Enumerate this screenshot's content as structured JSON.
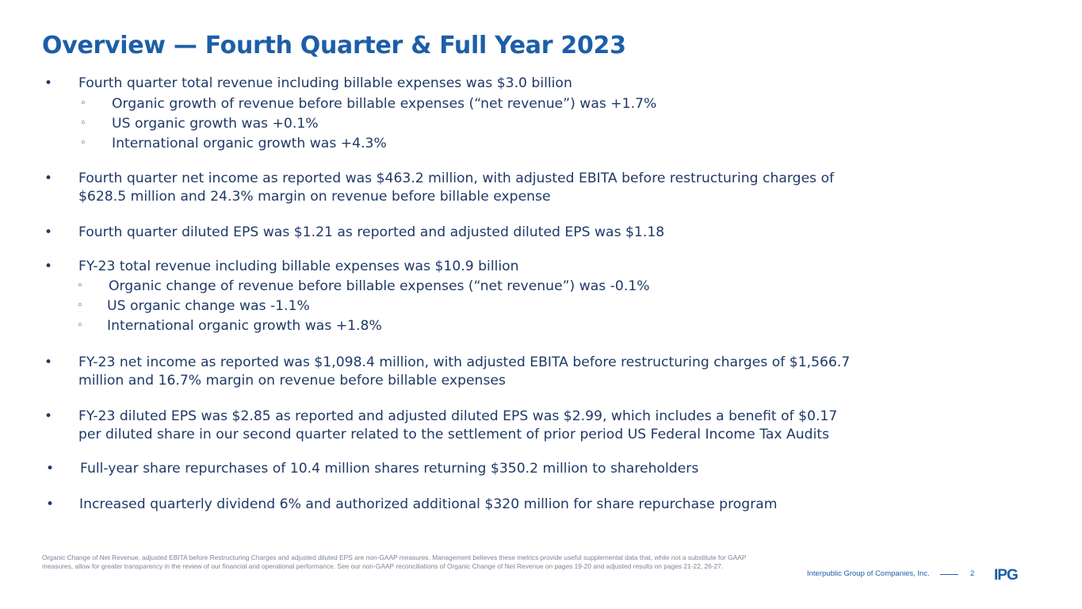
{
  "title": "Overview — Fourth Quarter & Full Year 2023",
  "bullets": [
    "Fourth quarter total revenue including billable expenses was $3.0 billion",
    "Organic growth of revenue before billable expenses (“net revenue”) was +1.7%",
    "US organic growth was +0.1%",
    "International organic growth was +4.3%",
    "Fourth quarter net income as reported was $463.2 million, with adjusted EBITA before restructuring charges of",
    "$628.5 million and 24.3% margin on revenue before billable expense",
    "Fourth quarter diluted EPS was $1.21 as reported and adjusted diluted EPS was $1.18",
    "FY-23 total revenue including billable expenses was $10.9 billion",
    "Organic change of revenue before billable expenses (“net revenue”) was -0.1%",
    "US organic change was -1.1%",
    "International organic growth was +1.8%",
    "FY-23 net income as reported was $1,098.4 million, with adjusted EBITA before restructuring charges of $1,566.7",
    "million and 16.7% margin on revenue before billable expenses",
    "FY-23 diluted EPS was $2.85 as reported and adjusted diluted EPS was $2.99, which includes a benefit of $0.17",
    "per diluted share in our second quarter related to the settlement of prior period US Federal Income Tax Audits",
    "Full-year share repurchases of 10.4 million shares returning $350.2 million to shareholders",
    "Increased quarterly dividend 6% and authorized additional $320 million for share repurchase program"
  ],
  "footnote": "Organic Change of Net Revenue, adjusted EBITA before Restructuring Charges and adjusted diluted EPS are non-GAAP measures. Management believes these metrics provide useful supplemental data that, while not a substitute for GAAP measures, allow for greater transparency in the review of our financial and operational performance. See our non-GAAP reconciliations of Organic Change of Net Revenue on pages 19-20 and adjusted results on pages 21-22, 26-27.",
  "footer": {
    "company": "Interpublic Group of Companies, Inc.",
    "page": "2",
    "logo_text": "IPG"
  },
  "colors": {
    "title": "#1d5ea8",
    "body": "#1f3a68",
    "footnote": "#7a8697"
  }
}
